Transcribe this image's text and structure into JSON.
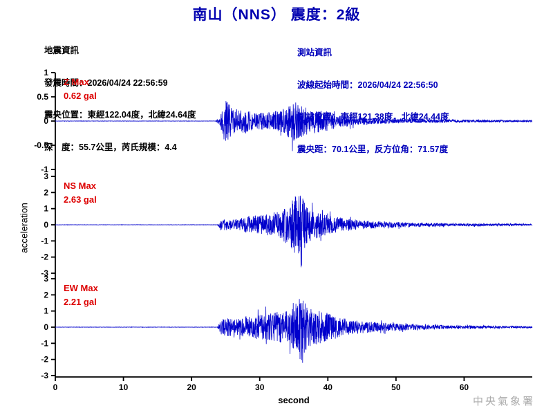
{
  "title": "南山（NNS） 震度：2級",
  "quake_info": {
    "header": "地震資訊",
    "lines": [
      "發震時間：2026/04/24 22:56:59",
      "震央位置：東經122.04度，北緯24.64度",
      "深　度：55.7公里，芮氏規模：4.4"
    ]
  },
  "station_info": {
    "header": "測站資訊",
    "lines": [
      "波線起始時間：2026/04/24 22:56:50",
      "測站位置：東經121.38度，北緯24.44度",
      "震央距：70.1公里，反方位角：71.57度"
    ]
  },
  "footer": {
    "agency": "中央氣象署"
  },
  "colors": {
    "title": "#0000b0",
    "quake_info": "#000000",
    "station_info": "#0000bb",
    "trace": "#0000cc",
    "max_label": "#dd0000",
    "axis": "#000000",
    "agency": "#aaaaaa"
  },
  "chart_data": {
    "type": "line",
    "title": "南山（NNS） 震度：2級",
    "xlabel": "second",
    "ylabel": "acceleration",
    "x_range": [
      0,
      70
    ],
    "x_ticks": [
      0,
      10,
      20,
      30,
      40,
      50,
      60
    ],
    "grid": false,
    "legend": false,
    "signal_onset_s": 24,
    "line_color": "#0000cc",
    "series": [
      {
        "name": "Z",
        "max_label": "Z Max",
        "max_value_label": "0.62 gal",
        "peak_gal": 0.62,
        "ylim": [
          -1,
          1
        ],
        "y_ticks": [
          1,
          0.5,
          0,
          -0.5,
          -1
        ],
        "seed": 7,
        "envelope": [
          [
            0,
            0.004
          ],
          [
            23.6,
            0.004
          ],
          [
            24.2,
            0.12
          ],
          [
            24.8,
            0.55
          ],
          [
            25.5,
            0.42
          ],
          [
            26.5,
            0.25
          ],
          [
            28,
            0.3
          ],
          [
            30,
            0.2
          ],
          [
            33,
            0.25
          ],
          [
            35,
            0.48
          ],
          [
            36,
            0.42
          ],
          [
            37.5,
            0.3
          ],
          [
            39,
            0.28
          ],
          [
            41,
            0.18
          ],
          [
            44,
            0.1
          ],
          [
            48,
            0.06
          ],
          [
            55,
            0.04
          ],
          [
            62,
            0.03
          ],
          [
            70,
            0.02
          ]
        ]
      },
      {
        "name": "NS",
        "max_label": "NS Max",
        "max_value_label": "2.63 gal",
        "peak_gal": 2.63,
        "ylim": [
          -3,
          3
        ],
        "y_ticks": [
          3,
          2,
          1,
          0,
          -1,
          -2,
          -3
        ],
        "seed": 13,
        "envelope": [
          [
            0,
            0.01
          ],
          [
            23.8,
            0.01
          ],
          [
            24.3,
            0.35
          ],
          [
            25,
            0.5
          ],
          [
            26,
            0.4
          ],
          [
            27.5,
            0.55
          ],
          [
            29,
            0.7
          ],
          [
            31,
            0.85
          ],
          [
            33,
            1.1
          ],
          [
            34.5,
            1.7
          ],
          [
            35.5,
            2.6
          ],
          [
            36.3,
            2.2
          ],
          [
            37,
            1.4
          ],
          [
            38.5,
            1.1
          ],
          [
            40,
            0.8
          ],
          [
            42,
            0.55
          ],
          [
            45,
            0.35
          ],
          [
            48,
            0.25
          ],
          [
            52,
            0.18
          ],
          [
            58,
            0.12
          ],
          [
            65,
            0.08
          ],
          [
            70,
            0.06
          ]
        ]
      },
      {
        "name": "EW",
        "max_label": "EW Max",
        "max_value_label": "2.21 gal",
        "peak_gal": 2.21,
        "ylim": [
          -3,
          3
        ],
        "y_ticks": [
          3,
          2,
          1,
          0,
          -1,
          -2,
          -3
        ],
        "seed": 29,
        "envelope": [
          [
            0,
            0.01
          ],
          [
            23.8,
            0.01
          ],
          [
            24.3,
            0.4
          ],
          [
            25.2,
            0.55
          ],
          [
            26.5,
            0.45
          ],
          [
            28,
            0.6
          ],
          [
            30,
            0.7
          ],
          [
            32,
            0.8
          ],
          [
            34,
            1.0
          ],
          [
            35.6,
            1.4
          ],
          [
            36.2,
            2.2
          ],
          [
            37,
            1.1
          ],
          [
            38.5,
            0.95
          ],
          [
            40.5,
            0.75
          ],
          [
            42.5,
            0.5
          ],
          [
            45,
            0.35
          ],
          [
            48,
            0.25
          ],
          [
            52,
            0.17
          ],
          [
            58,
            0.1
          ],
          [
            65,
            0.07
          ],
          [
            70,
            0.05
          ]
        ]
      }
    ]
  }
}
